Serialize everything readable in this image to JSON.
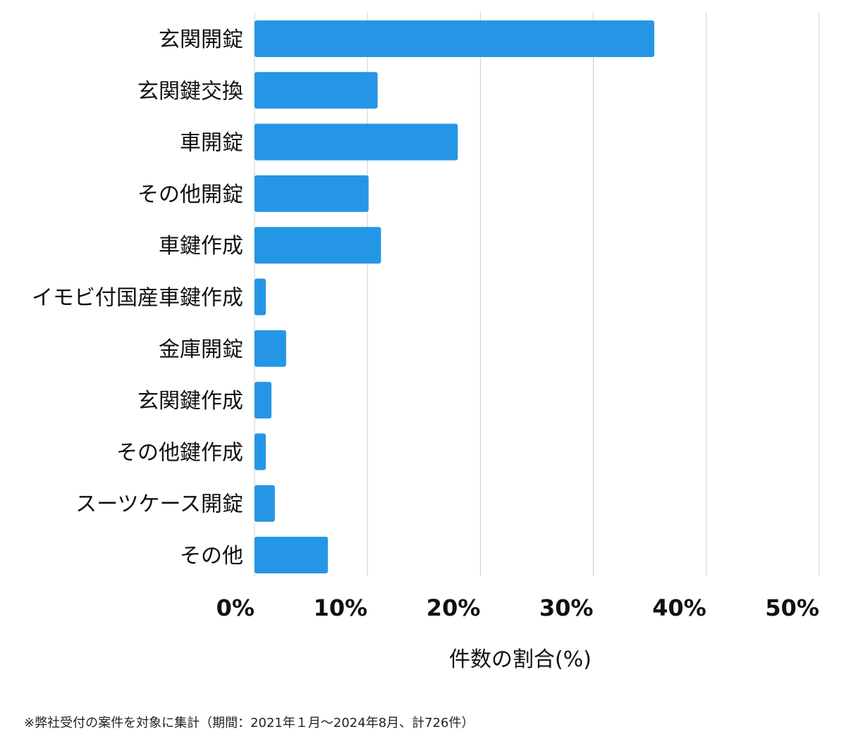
{
  "chart_data": {
    "type": "bar",
    "orientation": "horizontal",
    "categories": [
      "玄関開錠",
      "玄関鍵交換",
      "車開錠",
      "その他開錠",
      "車鍵作成",
      "イモビ付国産車鍵作成",
      "金庫開錠",
      "玄関鍵作成",
      "その他鍵作成",
      "スーツケース開錠",
      "その他"
    ],
    "values": [
      35.4,
      10.9,
      18.0,
      10.1,
      11.2,
      1.0,
      2.8,
      1.5,
      1.0,
      1.8,
      6.5
    ],
    "xlabel": "件数の割合(%)",
    "ylabel": "",
    "xlim": [
      0,
      50
    ],
    "ticks": [
      0,
      10,
      20,
      30,
      40,
      50
    ],
    "tick_labels": [
      "0%",
      "10%",
      "20%",
      "30%",
      "40%",
      "50%"
    ],
    "grid": true,
    "bar_color": "#2596e6",
    "grid_color": "#cccccc"
  },
  "footnote": "※弊社受付の案件を対象に集計（期間：2021年１月〜2024年8月、計726件）"
}
